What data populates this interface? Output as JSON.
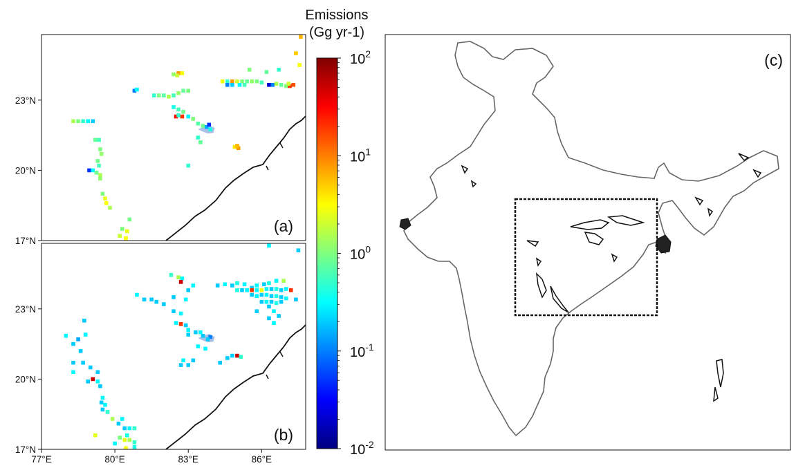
{
  "colorbar": {
    "title_line1": "Emissions",
    "title_line2": "(Gg yr-1)",
    "ticks": [
      {
        "base": "10",
        "exp": "2",
        "value": 100
      },
      {
        "base": "10",
        "exp": "1",
        "value": 10
      },
      {
        "base": "10",
        "exp": "0",
        "value": 1
      },
      {
        "base": "10",
        "exp": "-1",
        "value": 0.1
      },
      {
        "base": "10",
        "exp": "-2",
        "value": 0.01
      }
    ],
    "scale": "log",
    "colormap": "jet",
    "range": [
      0.01,
      100
    ],
    "colors": [
      "#00007f",
      "#0000ff",
      "#007fff",
      "#00ffff",
      "#7fff7f",
      "#ffff00",
      "#ff7f00",
      "#ff0000",
      "#7f0000"
    ]
  },
  "chart_data": [
    {
      "type": "heatmap",
      "panel_label": "(a)",
      "lat_ticks": [
        "23°N",
        "20°N",
        "17°N"
      ],
      "lon_ticks": [],
      "lon_range": [
        77,
        87.8
      ],
      "lat_range": [
        17,
        25.8
      ],
      "cells": [
        [
          78.3,
          22.1,
          1.5
        ],
        [
          78.5,
          22.1,
          1.0
        ],
        [
          78.7,
          22.1,
          0.5
        ],
        [
          78.9,
          22.1,
          0.3
        ],
        [
          79.1,
          22.1,
          0.2
        ],
        [
          79.2,
          21.3,
          0.8
        ],
        [
          79.35,
          21.3,
          0.6
        ],
        [
          79.4,
          20.9,
          1.0
        ],
        [
          79.45,
          20.7,
          1.2
        ],
        [
          79.3,
          20.4,
          0.9
        ],
        [
          79.35,
          20.2,
          0.6
        ],
        [
          78.95,
          20.0,
          0.05
        ],
        [
          79.1,
          20.0,
          0.3
        ],
        [
          79.25,
          19.9,
          0.9
        ],
        [
          79.4,
          19.8,
          1.5
        ],
        [
          79.4,
          19.65,
          1.2
        ],
        [
          79.5,
          19.0,
          1.0
        ],
        [
          79.6,
          18.8,
          2.5
        ],
        [
          79.65,
          18.6,
          3.0
        ],
        [
          79.8,
          18.4,
          1.5
        ],
        [
          80.3,
          17.5,
          1.0
        ],
        [
          80.5,
          17.4,
          2.5
        ],
        [
          80.6,
          17.9,
          0.9
        ],
        [
          80.2,
          17.2,
          2.0
        ],
        [
          80.45,
          17.1,
          3.0
        ],
        [
          80.8,
          23.4,
          0.1
        ],
        [
          80.9,
          23.45,
          0.3
        ],
        [
          81.6,
          23.2,
          0.5
        ],
        [
          81.8,
          23.2,
          1.0
        ],
        [
          82.0,
          23.2,
          0.7
        ],
        [
          82.2,
          23.15,
          1.5
        ],
        [
          82.4,
          23.2,
          0.6
        ],
        [
          82.6,
          23.3,
          1.2
        ],
        [
          82.8,
          23.4,
          0.8
        ],
        [
          83.0,
          23.4,
          1.0
        ],
        [
          82.4,
          24.1,
          1.2
        ],
        [
          82.6,
          24.15,
          8.0
        ],
        [
          82.75,
          24.15,
          3.0
        ],
        [
          82.55,
          24.05,
          2.0
        ],
        [
          82.4,
          22.7,
          0.4
        ],
        [
          82.6,
          22.6,
          0.6
        ],
        [
          82.8,
          22.5,
          0.9
        ],
        [
          82.5,
          22.3,
          30.0
        ],
        [
          82.75,
          22.3,
          20.0
        ],
        [
          82.6,
          22.35,
          0.5
        ],
        [
          83.0,
          22.3,
          0.3
        ],
        [
          83.2,
          22.2,
          1.0
        ],
        [
          83.4,
          22.0,
          0.7
        ],
        [
          83.6,
          21.9,
          0.9
        ],
        [
          83.75,
          21.85,
          0.15
        ],
        [
          83.85,
          21.95,
          0.05
        ],
        [
          83.9,
          21.75,
          0.4
        ],
        [
          83.4,
          21.4,
          0.5
        ],
        [
          83.5,
          21.2,
          0.8
        ],
        [
          84.9,
          21.0,
          4.0
        ],
        [
          85.05,
          20.95,
          8.0
        ],
        [
          85.0,
          21.05,
          6.0
        ],
        [
          83.0,
          20.2,
          0.5
        ],
        [
          84.4,
          23.8,
          3.0
        ],
        [
          84.6,
          23.8,
          0.5
        ],
        [
          84.8,
          23.8,
          8.0
        ],
        [
          85.0,
          23.8,
          2.0
        ],
        [
          85.2,
          23.8,
          1.0
        ],
        [
          85.4,
          23.8,
          0.8
        ],
        [
          85.6,
          23.8,
          1.2
        ],
        [
          85.8,
          23.8,
          1.0
        ],
        [
          86.0,
          23.75,
          0.6
        ],
        [
          84.6,
          23.65,
          0.1
        ],
        [
          84.8,
          23.65,
          0.2
        ],
        [
          85.1,
          23.65,
          0.3
        ],
        [
          85.3,
          23.65,
          0.6
        ],
        [
          86.3,
          23.65,
          0.02
        ],
        [
          86.45,
          23.65,
          0.1
        ],
        [
          86.6,
          23.7,
          1.5
        ],
        [
          86.8,
          23.65,
          0.8
        ],
        [
          87.0,
          23.6,
          1.0
        ],
        [
          87.15,
          23.6,
          20.0
        ],
        [
          87.3,
          23.65,
          15.0
        ],
        [
          87.1,
          23.7,
          2.0
        ],
        [
          85.5,
          24.3,
          1.0
        ],
        [
          86.2,
          24.2,
          0.8
        ],
        [
          86.7,
          24.3,
          0.5
        ],
        [
          87.4,
          25.0,
          5.0
        ],
        [
          87.6,
          25.7,
          6.0
        ],
        [
          87.55,
          24.5,
          3.0
        ]
      ]
    },
    {
      "type": "heatmap",
      "panel_label": "(b)",
      "lat_ticks": [
        "23°N",
        "20°N",
        "17°N"
      ],
      "lon_ticks": [
        "77°E",
        "80°E",
        "83°E",
        "86°E"
      ],
      "lon_range": [
        77,
        87.8
      ],
      "lat_range": [
        17,
        25.8
      ],
      "cells": [
        [
          78.0,
          21.85,
          0.3
        ],
        [
          78.3,
          21.5,
          0.2
        ],
        [
          78.5,
          21.7,
          0.15
        ],
        [
          78.6,
          21.2,
          0.2
        ],
        [
          78.75,
          22.5,
          0.2
        ],
        [
          78.8,
          21.9,
          0.3
        ],
        [
          78.3,
          20.7,
          0.2
        ],
        [
          78.3,
          20.3,
          0.3
        ],
        [
          78.7,
          20.7,
          0.2
        ],
        [
          79.0,
          20.5,
          0.2
        ],
        [
          79.3,
          20.3,
          0.2
        ],
        [
          79.1,
          20.0,
          50.0
        ],
        [
          78.9,
          19.9,
          0.2
        ],
        [
          79.3,
          19.9,
          0.3
        ],
        [
          79.4,
          19.7,
          0.2
        ],
        [
          79.5,
          19.2,
          0.3
        ],
        [
          79.45,
          19.0,
          0.2
        ],
        [
          79.6,
          18.9,
          0.3
        ],
        [
          79.5,
          18.7,
          0.2
        ],
        [
          79.7,
          18.6,
          0.5
        ],
        [
          79.9,
          18.3,
          1.5
        ],
        [
          80.3,
          18.3,
          0.3
        ],
        [
          80.15,
          18.1,
          0.2
        ],
        [
          80.4,
          17.9,
          0.2
        ],
        [
          80.6,
          17.9,
          0.3
        ],
        [
          80.8,
          17.9,
          0.5
        ],
        [
          80.5,
          17.6,
          0.4
        ],
        [
          79.2,
          17.6,
          2.5
        ],
        [
          80.2,
          17.5,
          1.0
        ],
        [
          80.4,
          17.4,
          2.5
        ],
        [
          80.6,
          17.4,
          1.5
        ],
        [
          80.8,
          17.3,
          0.5
        ],
        [
          80.0,
          17.25,
          0.3
        ],
        [
          80.45,
          17.05,
          3.0
        ],
        [
          80.8,
          17.1,
          0.4
        ],
        [
          80.9,
          23.6,
          0.3
        ],
        [
          81.2,
          23.4,
          0.2
        ],
        [
          81.5,
          23.4,
          0.2
        ],
        [
          81.7,
          23.3,
          0.2
        ],
        [
          82.0,
          23.2,
          0.2
        ],
        [
          82.4,
          23.5,
          0.2
        ],
        [
          82.9,
          23.4,
          0.3
        ],
        [
          83.0,
          23.8,
          0.2
        ],
        [
          82.3,
          24.45,
          0.5
        ],
        [
          82.6,
          24.35,
          1.5
        ],
        [
          82.75,
          24.3,
          0.3
        ],
        [
          82.7,
          24.15,
          50.0
        ],
        [
          83.2,
          24.0,
          0.3
        ],
        [
          82.4,
          22.9,
          0.2
        ],
        [
          82.7,
          22.8,
          0.3
        ],
        [
          82.5,
          22.4,
          0.3
        ],
        [
          82.7,
          22.35,
          20.0
        ],
        [
          82.9,
          22.3,
          0.2
        ],
        [
          83.0,
          22.1,
          0.3
        ],
        [
          83.3,
          22.0,
          0.2
        ],
        [
          83.5,
          22.0,
          0.3
        ],
        [
          83.6,
          21.85,
          0.2
        ],
        [
          83.0,
          21.9,
          0.2
        ],
        [
          83.4,
          21.4,
          0.3
        ],
        [
          83.7,
          21.3,
          0.3
        ],
        [
          83.9,
          21.8,
          0.1
        ],
        [
          83.8,
          21.7,
          0.2
        ],
        [
          84.8,
          21.0,
          0.2
        ],
        [
          85.0,
          21.0,
          50.0
        ],
        [
          85.15,
          20.95,
          0.5
        ],
        [
          84.6,
          20.9,
          0.2
        ],
        [
          84.3,
          20.7,
          0.2
        ],
        [
          83.2,
          20.8,
          0.2
        ],
        [
          83.0,
          20.6,
          0.2
        ],
        [
          82.8,
          20.8,
          0.3
        ],
        [
          82.7,
          20.6,
          0.2
        ],
        [
          84.2,
          24.0,
          0.2
        ],
        [
          84.5,
          24.05,
          0.3
        ],
        [
          84.8,
          24.0,
          0.2
        ],
        [
          85.0,
          24.1,
          0.4
        ],
        [
          85.3,
          24.05,
          0.3
        ],
        [
          85.6,
          23.9,
          0.2
        ],
        [
          85.8,
          24.0,
          0.3
        ],
        [
          86.1,
          24.05,
          0.2
        ],
        [
          86.3,
          24.1,
          0.4
        ],
        [
          86.6,
          24.2,
          0.3
        ],
        [
          86.9,
          24.2,
          1.5
        ],
        [
          85.0,
          23.8,
          0.4
        ],
        [
          85.2,
          23.8,
          0.2
        ],
        [
          85.4,
          23.8,
          0.3
        ],
        [
          85.6,
          23.8,
          20.0
        ],
        [
          85.8,
          23.8,
          0.3
        ],
        [
          86.0,
          23.8,
          3.0
        ],
        [
          86.2,
          23.85,
          0.3
        ],
        [
          86.4,
          23.85,
          0.2
        ],
        [
          86.6,
          23.85,
          0.4
        ],
        [
          86.8,
          23.8,
          0.2
        ],
        [
          87.0,
          23.85,
          0.3
        ],
        [
          87.2,
          23.8,
          20.0
        ],
        [
          85.6,
          23.6,
          0.2
        ],
        [
          85.8,
          23.55,
          0.3
        ],
        [
          86.0,
          23.6,
          0.2
        ],
        [
          86.2,
          23.6,
          0.3
        ],
        [
          86.4,
          23.55,
          0.2
        ],
        [
          86.6,
          23.55,
          0.4
        ],
        [
          86.8,
          23.5,
          0.2
        ],
        [
          87.0,
          23.45,
          0.3
        ],
        [
          87.4,
          23.4,
          0.2
        ],
        [
          86.0,
          23.3,
          0.2
        ],
        [
          86.2,
          23.3,
          0.3
        ],
        [
          86.4,
          23.3,
          0.2
        ],
        [
          86.6,
          23.25,
          0.4
        ],
        [
          86.8,
          23.3,
          0.2
        ],
        [
          86.3,
          23.1,
          0.2
        ],
        [
          86.5,
          22.9,
          0.3
        ],
        [
          86.7,
          22.7,
          0.2
        ],
        [
          86.3,
          22.6,
          0.2
        ],
        [
          86.5,
          22.4,
          0.3
        ],
        [
          85.8,
          22.9,
          0.2
        ],
        [
          86.3,
          25.7,
          0.3
        ],
        [
          87.5,
          25.5,
          0.2
        ]
      ]
    },
    {
      "type": "map",
      "panel_label": "(c)"
    }
  ]
}
